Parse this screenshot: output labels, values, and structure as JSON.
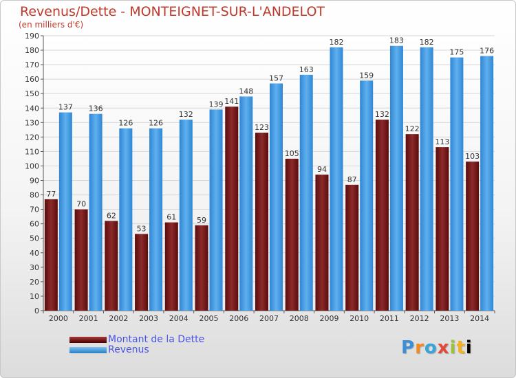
{
  "header": {
    "title": "Revenus/Dette - MONTEIGNET-SUR-L'ANDELOT",
    "subtitle": "(en milliers d'€)"
  },
  "colors": {
    "dette": "#7a1f1f",
    "revenus": "#3a96e0",
    "title": "#c0392b",
    "legend_text": "#4a55e0"
  },
  "chart_data": {
    "type": "bar",
    "title": "Revenus/Dette - MONTEIGNET-SUR-L'ANDELOT",
    "subtitle": "(en milliers d'€)",
    "xlabel": "",
    "ylabel": "",
    "ylim": [
      0,
      190
    ],
    "ytick_step": 10,
    "grid": true,
    "legend_position": "bottom-left",
    "categories": [
      "2000",
      "2001",
      "2002",
      "2003",
      "2004",
      "2005",
      "2006",
      "2007",
      "2008",
      "2009",
      "2010",
      "2011",
      "2012",
      "2013",
      "2014"
    ],
    "series": [
      {
        "name": "Montant de la Dette",
        "values": [
          77,
          70,
          62,
          53,
          61,
          59,
          141,
          123,
          105,
          94,
          87,
          132,
          122,
          113,
          103
        ]
      },
      {
        "name": "Revenus",
        "values": [
          137,
          136,
          126,
          126,
          132,
          139,
          148,
          157,
          163,
          182,
          159,
          183,
          182,
          175,
          176
        ]
      }
    ]
  },
  "legend": {
    "dette": "Montant de la Dette",
    "revenus": "Revenus"
  },
  "logo": {
    "letters": [
      "P",
      "r",
      "o",
      "x",
      "i",
      "t",
      "i"
    ]
  }
}
